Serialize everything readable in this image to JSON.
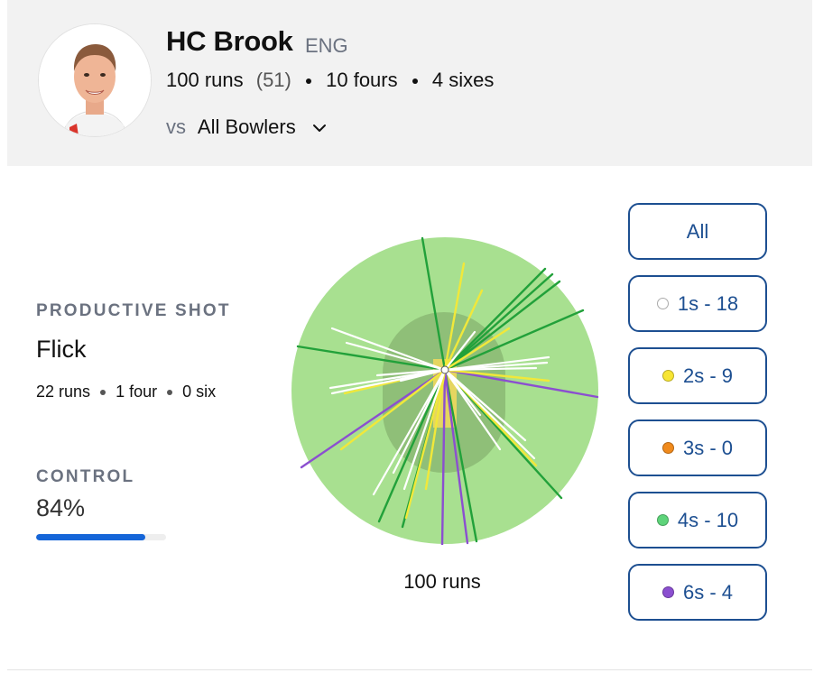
{
  "player": {
    "name": "HC Brook",
    "country": "ENG",
    "runs": "100 runs",
    "balls": "(51)",
    "fours": "10 fours",
    "sixes": "4 sixes"
  },
  "opponent": {
    "prefix": "vs",
    "selected": "All Bowlers"
  },
  "productive_shot": {
    "label": "PRODUCTIVE SHOT",
    "name": "Flick",
    "runs": "22 runs",
    "fours": "1 four",
    "sixes": "0 six"
  },
  "control": {
    "label": "CONTROL",
    "value": "84%",
    "fraction": 0.84
  },
  "wagon_wheel": {
    "total": "100 runs",
    "colors": {
      "1s": "#ffffff",
      "2s": "#f1e83a",
      "3s": "#f08a1c",
      "4s": "#22a13a",
      "6s": "#8b4fd0",
      "field": "#a8e090",
      "infield": "#8fbf78",
      "pitch": "#e5d660"
    }
  },
  "filters": [
    {
      "label": "All",
      "dot": null
    },
    {
      "label": "1s - 18",
      "dot": "#ffffff"
    },
    {
      "label": "2s - 9",
      "dot": "#f7e533"
    },
    {
      "label": "3s - 0",
      "dot": "#f08a1c"
    },
    {
      "label": "4s - 10",
      "dot": "#5ed47a"
    },
    {
      "label": "6s - 4",
      "dot": "#8b4fd0"
    }
  ]
}
